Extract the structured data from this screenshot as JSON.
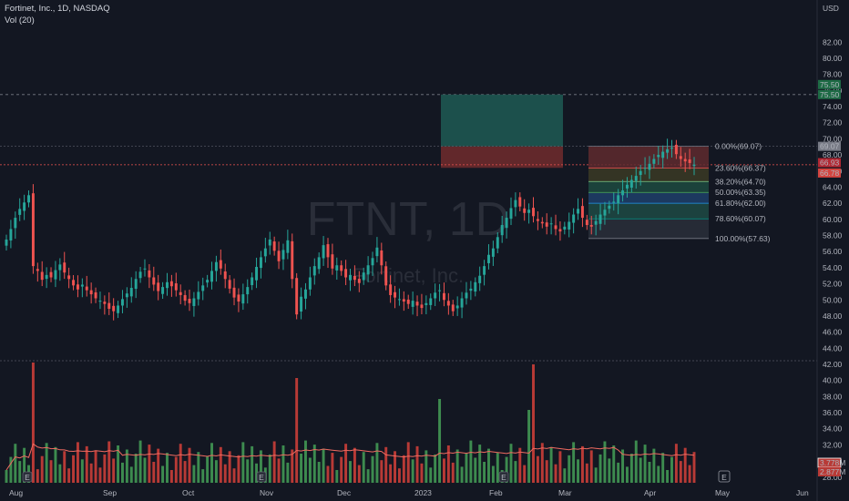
{
  "header": {
    "symbol_line": "Fortinet, Inc., 1D, NASDAQ",
    "vol_line": "Vol (20)"
  },
  "watermark": {
    "ticker": "FTNT, 1D",
    "company": "Fortinet, Inc."
  },
  "colors": {
    "background": "#131722",
    "up": "#26a69a",
    "down": "#ef5350",
    "vol_up": "#3d8b4f",
    "vol_down": "#b83a36",
    "ma_line": "#ef6a60"
  },
  "chart_data": {
    "type": "candlestick",
    "currency": "USD",
    "y_ticks": [
      "82.00",
      "80.00",
      "78.00",
      "76.00",
      "74.00",
      "72.00",
      "70.00",
      "68.00",
      "66.00",
      "64.00",
      "62.00",
      "60.00",
      "58.00",
      "56.00",
      "54.00",
      "52.00",
      "50.00",
      "48.00",
      "46.00",
      "44.00",
      "42.00",
      "40.00",
      "38.00",
      "36.00",
      "34.00",
      "32.00",
      "30.00",
      "28.00"
    ],
    "x_ticks": [
      "Aug",
      "Sep",
      "Oct",
      "Nov",
      "Dec",
      "2023",
      "Feb",
      "Mar",
      "Apr",
      "May",
      "Jun"
    ],
    "price_range": [
      43,
      70
    ],
    "close_series": [
      57.5,
      58.8,
      60.2,
      61.3,
      62.1,
      63.0,
      54.2,
      53.6,
      52.5,
      53.1,
      52.8,
      53.7,
      54.4,
      53.4,
      52.6,
      51.8,
      51.3,
      51.9,
      51.2,
      50.7,
      50.2,
      49.9,
      49.5,
      48.9,
      48.6,
      49.3,
      50.1,
      50.8,
      51.5,
      52.6,
      53.5,
      53.9,
      52.8,
      51.9,
      51.1,
      51.6,
      52.2,
      51.7,
      51.2,
      50.6,
      49.9,
      49.6,
      50.2,
      51.0,
      51.8,
      52.5,
      53.6,
      54.7,
      53.9,
      52.6,
      51.4,
      50.3,
      49.8,
      50.7,
      51.6,
      52.8,
      54.1,
      55.3,
      56.4,
      57.5,
      56.1,
      54.8,
      56.2,
      57.4,
      52.6,
      48.2,
      50.4,
      51.3,
      52.8,
      54.2,
      55.3,
      56.8,
      55.3,
      53.9,
      54.3,
      53.6,
      52.8,
      53.1,
      52.5,
      52.1,
      53.4,
      54.3,
      55.2,
      56.5,
      54.3,
      51.8,
      50.6,
      50.3,
      50.1,
      49.8,
      49.5,
      49.9,
      49.3,
      49.0,
      49.6,
      50.2,
      50.9,
      51.2,
      50.0,
      49.3,
      48.6,
      49.3,
      50.2,
      50.9,
      51.4,
      52.2,
      53.0,
      54.2,
      55.6,
      56.4,
      57.8,
      59.3,
      60.2,
      61.4,
      62.4,
      61.6,
      60.8,
      61.2,
      60.4,
      59.8,
      59.5,
      59.1,
      59.5,
      58.8,
      58.5,
      59.1,
      59.7,
      60.6,
      61.3,
      60.2,
      59.3,
      59.1,
      59.8,
      60.6,
      61.2,
      61.7,
      62.2,
      63.0,
      63.6,
      64.3,
      64.9,
      65.4,
      66.0,
      66.4,
      66.9,
      67.5,
      68.0,
      68.4,
      68.7,
      68.9,
      68.1,
      67.5,
      67.2,
      67.0,
      66.8
    ],
    "current_price": "66.93",
    "prior_close": "66.78",
    "high_marker": "69.07",
    "target_line": "75.50",
    "volume": {
      "label": "Vol (20)",
      "last_values": [
        "3.778M",
        "2.877M"
      ]
    },
    "fibonacci": [
      {
        "ratio": "0.00%",
        "price": "69.07",
        "label": "0.00%(69.07)"
      },
      {
        "ratio": "23.60%",
        "price": "66.37",
        "label": "23.60%(66.37)"
      },
      {
        "ratio": "38.20%",
        "price": "64.70",
        "label": "38.20%(64.70)"
      },
      {
        "ratio": "50.00%",
        "price": "63.35",
        "label": "50.00%(63.35)"
      },
      {
        "ratio": "61.80%",
        "price": "62.00",
        "label": "61.80%(62.00)"
      },
      {
        "ratio": "78.60%",
        "price": "60.07",
        "label": "78.60%(60.07)"
      },
      {
        "ratio": "100.00%",
        "price": "57.63",
        "label": "100.00%(57.63)"
      }
    ],
    "earnings_marker": "E",
    "grid": false
  }
}
